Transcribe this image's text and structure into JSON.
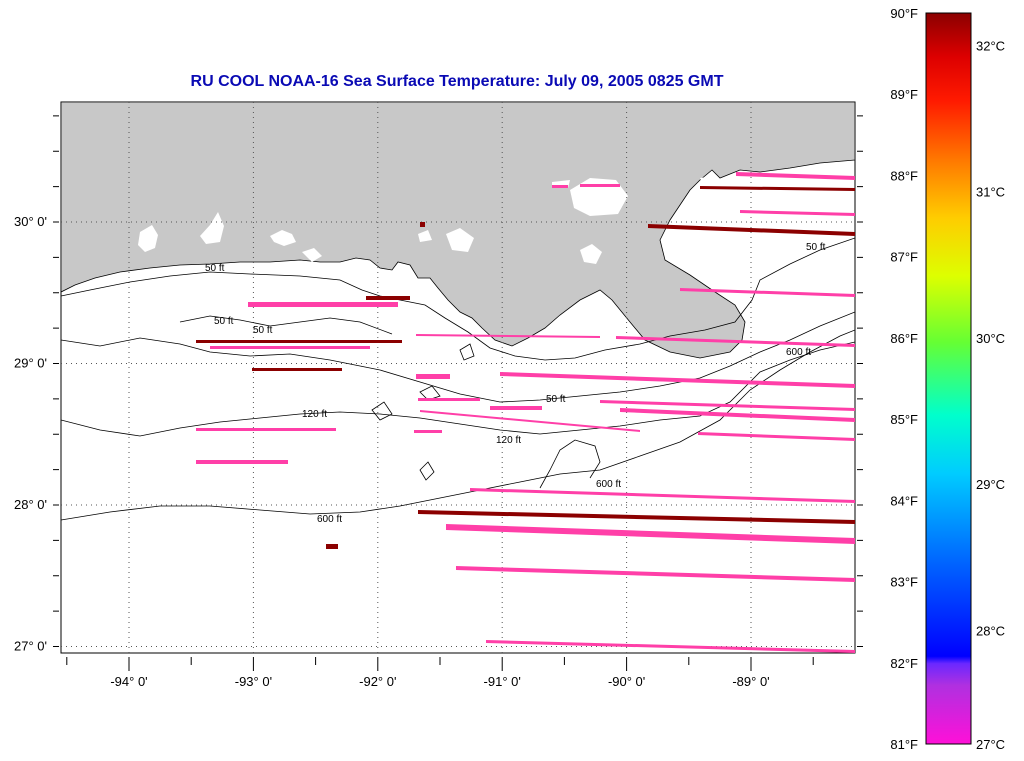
{
  "title": "RU COOL  NOAA-16  Sea Surface Temperature:  July 09, 2005 0825 GMT",
  "map": {
    "lon_ticks": [
      {
        "lon": -94.0,
        "label": "-94° 0'"
      },
      {
        "lon": -93.0,
        "label": "-93° 0'"
      },
      {
        "lon": -92.0,
        "label": "-92° 0'"
      },
      {
        "lon": -91.0,
        "label": "-91° 0'"
      },
      {
        "lon": -90.0,
        "label": "-90° 0'"
      },
      {
        "lon": -89.0,
        "label": "-89° 0'"
      }
    ],
    "lat_ticks": [
      {
        "lat": 30.0,
        "label": "30° 0'"
      },
      {
        "lat": 29.0,
        "label": "29° 0'"
      },
      {
        "lat": 28.0,
        "label": "28° 0'"
      },
      {
        "lat": 27.0,
        "label": "27° 0'"
      }
    ],
    "contour_labels": [
      "50 ft",
      "120 ft",
      "600 ft"
    ],
    "colors": {
      "land": "#c8c8c8",
      "sst_pink": "#ff3fa8",
      "sst_dark": "#8b0000",
      "contour": "#000000",
      "title": "#0a0ab4"
    }
  },
  "colorbar": {
    "fahrenheit_labels": [
      "90°F",
      "89°F",
      "88°F",
      "87°F",
      "86°F",
      "85°F",
      "84°F",
      "83°F",
      "82°F",
      "81°F"
    ],
    "celsius_labels": [
      "32°C",
      "31°C",
      "30°C",
      "29°C",
      "28°C",
      "27°C"
    ],
    "range_f": [
      81,
      90
    ],
    "range_c": [
      27,
      32
    ]
  }
}
